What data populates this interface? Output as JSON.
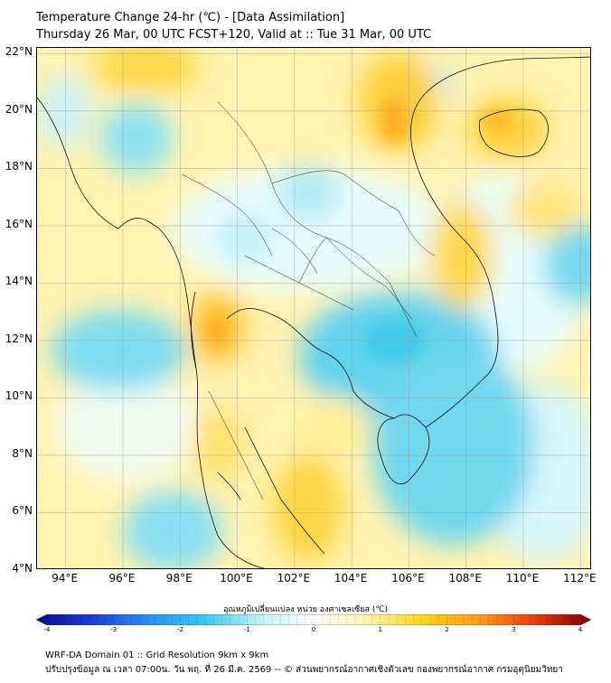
{
  "header": {
    "title_line1": "Temperature Change 24-hr (℃) - [Data Assimilation]",
    "title_line2": "Thursday 26 Mar, 00 UTC FCST+120, Valid at :: Tue 31 Mar, 00 UTC"
  },
  "map": {
    "lat_labels": [
      "22°N",
      "20°N",
      "18°N",
      "16°N",
      "14°N",
      "12°N",
      "10°N",
      "8°N",
      "6°N",
      "4°N"
    ],
    "lon_labels": [
      "94°E",
      "96°E",
      "98°E",
      "100°E",
      "102°E",
      "104°E",
      "106°E",
      "108°E",
      "110°E",
      "112°E"
    ],
    "lat_range": [
      4,
      22.2
    ],
    "lon_range": [
      93,
      112.4
    ]
  },
  "colorbar": {
    "title": "อุณหภูมิเปลี่ยนแปลง หน่วย องศาเซลเซียส (℃)",
    "ticks": [
      "-4",
      "-3",
      "-2",
      "-1",
      "0",
      "1",
      "2",
      "3",
      "4"
    ],
    "range": [
      -4,
      4
    ],
    "colors": [
      "#0a0a8c",
      "#1c3cd8",
      "#2a8ff0",
      "#35c8f0",
      "#bff2f5",
      "#ffffff",
      "#fff4a8",
      "#ffd21a",
      "#ff9b1a",
      "#e83a10",
      "#7a0000"
    ]
  },
  "footer": {
    "line1": "WRF-DA Domain 01 :: Grid Resolution 9km x 9km",
    "line2": "ปรับปรุงข้อมูล ณ เวลา 07:00น. วัน พฤ. ที่ 26 มี.ค. 2569 -- © ส่วนพยากรณ์อากาศเชิงตัวเลข กองพยากรณ์อากาศ กรมอุตุนิยมวิทยา"
  }
}
